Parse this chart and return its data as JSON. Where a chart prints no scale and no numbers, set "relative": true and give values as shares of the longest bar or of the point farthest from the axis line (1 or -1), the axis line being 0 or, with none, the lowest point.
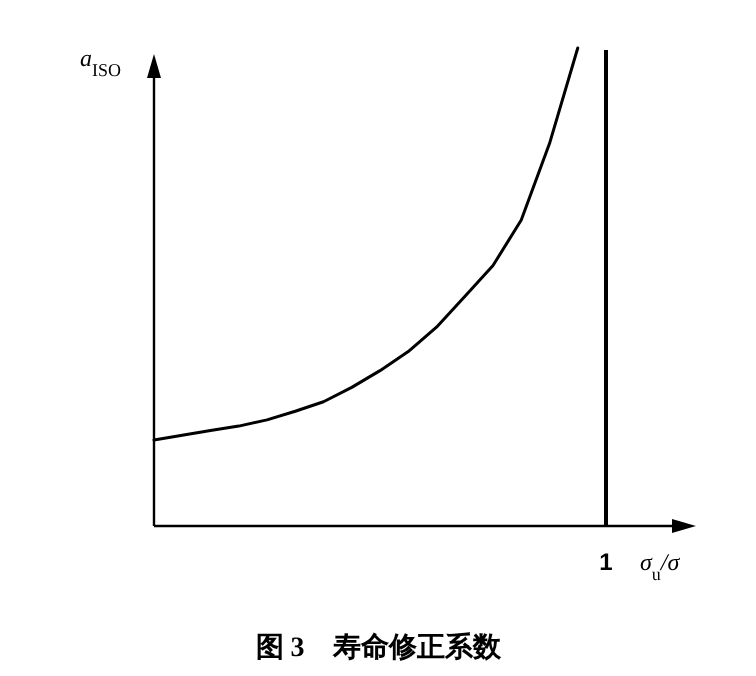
{
  "chart_data": {
    "type": "line",
    "relative": true,
    "title": "图 3　寿命修正系数",
    "xlabel": "σ$_{u}$/σ",
    "ylabel": "a$_{ISO}$",
    "categories": [
      null,
      null,
      null,
      null,
      null,
      null,
      null,
      null,
      null,
      null,
      null,
      null,
      null,
      null,
      null,
      null,
      null
    ],
    "series": [
      {
        "color": "#000000",
        "values": [
          0.18,
          0.19,
          0.2,
          0.209,
          0.222,
          0.24,
          0.26,
          0.29,
          0.325,
          0.365,
          0.416,
          0.48,
          0.545,
          0.64,
          0.8,
          1,
          null
        ]
      }
    ],
    "annotations": [
      "1"
    ]
  }
}
